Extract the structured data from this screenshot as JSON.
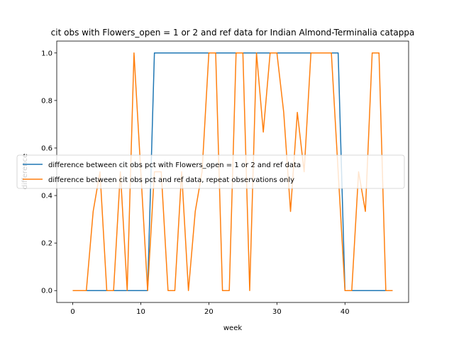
{
  "chart_data": {
    "type": "line",
    "title": "cit obs with Flowers_open = 1 or 2 and ref data for Indian Almond-Terminalia catappa",
    "xlabel": "week",
    "ylabel": "difference",
    "xlim": [
      -2.35,
      49.35
    ],
    "ylim": [
      -0.05,
      1.05
    ],
    "xticks": [
      0,
      10,
      20,
      30,
      40
    ],
    "yticks": [
      0.0,
      0.2,
      0.4,
      0.6,
      0.8,
      1.0
    ],
    "xtick_labels": [
      "0",
      "10",
      "20",
      "30",
      "40"
    ],
    "ytick_labels": [
      "0.0",
      "0.2",
      "0.4",
      "0.6",
      "0.8",
      "1.0"
    ],
    "grid": false,
    "legend_position": "center-left",
    "series": [
      {
        "name": "difference between cit obs pct with Flowers_open = 1 or 2 and ref data",
        "color": "#1f77b4",
        "x": [
          0,
          1,
          2,
          3,
          4,
          5,
          6,
          7,
          8,
          9,
          10,
          11,
          12,
          13,
          14,
          15,
          16,
          17,
          18,
          19,
          20,
          21,
          22,
          23,
          24,
          25,
          26,
          27,
          28,
          29,
          30,
          31,
          32,
          33,
          34,
          35,
          36,
          37,
          38,
          39,
          40,
          41,
          42,
          43,
          44,
          45,
          46,
          47
        ],
        "values": [
          0,
          0,
          0,
          0,
          0,
          0,
          0,
          0,
          0,
          0,
          0,
          0,
          1,
          1,
          1,
          1,
          1,
          1,
          1,
          1,
          1,
          1,
          1,
          1,
          1,
          1,
          1,
          1,
          1,
          1,
          1,
          1,
          1,
          1,
          1,
          1,
          1,
          1,
          1,
          1,
          0,
          0,
          0,
          0,
          0,
          0,
          0,
          0
        ]
      },
      {
        "name": "difference between cit obs pct and ref data, repeat observations only",
        "color": "#ff7f0e",
        "x": [
          0,
          1,
          2,
          3,
          4,
          5,
          6,
          7,
          8,
          9,
          10,
          11,
          12,
          13,
          14,
          15,
          16,
          17,
          18,
          19,
          20,
          21,
          22,
          23,
          24,
          25,
          26,
          27,
          28,
          29,
          30,
          31,
          32,
          33,
          34,
          35,
          36,
          37,
          38,
          39,
          40,
          41,
          42,
          43,
          44,
          45,
          46,
          47
        ],
        "values": [
          0,
          0,
          0,
          0.333,
          0.5,
          0,
          0,
          0.5,
          0,
          1,
          0.5,
          0,
          0.5,
          0.5,
          0,
          0,
          0.5,
          0,
          0.333,
          0.5,
          1,
          1,
          0,
          0,
          1,
          1,
          0,
          1,
          0.667,
          1,
          1,
          0.75,
          0.333,
          0.75,
          0.5,
          1,
          1,
          1,
          1,
          0.5,
          0,
          0,
          0.5,
          0.333,
          1,
          1,
          0,
          0
        ]
      }
    ]
  }
}
